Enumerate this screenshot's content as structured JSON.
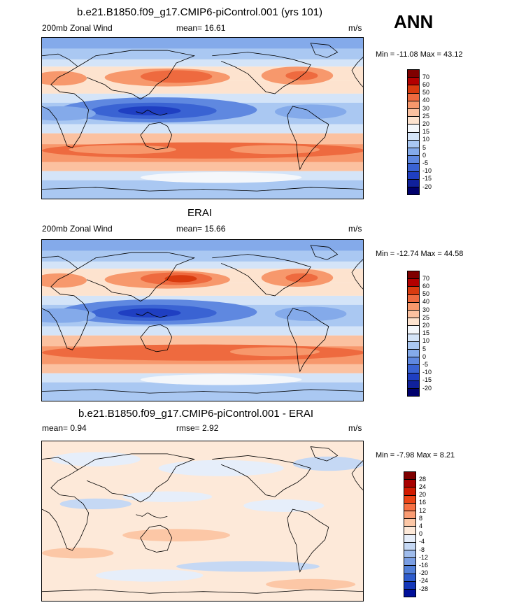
{
  "header": {
    "season": "ANN"
  },
  "panels": [
    {
      "title": "b.e21.B1850.f09_g17.CMIP6-piControl.001 (yrs 101)",
      "left_label": "200mb Zonal Wind",
      "center_label": "mean=  16.61",
      "right_label": "m/s",
      "minmax": "Min = -11.08 Max =  43.12",
      "colorbar": {
        "labels": [
          "70",
          "60",
          "50",
          "40",
          "30",
          "25",
          "20",
          "15",
          "10",
          "5",
          "0",
          "-5",
          "-10",
          "-15",
          "-20"
        ],
        "colors": [
          "#7f0000",
          "#b30000",
          "#d93b0f",
          "#ee6a3f",
          "#f7986c",
          "#fbc1a0",
          "#fde3cf",
          "#f4f7fb",
          "#d4e4f8",
          "#aac8f2",
          "#84aaea",
          "#5f88e0",
          "#3a63d3",
          "#1f3fc2",
          "#10219b",
          "#00006c"
        ]
      },
      "field": "model"
    },
    {
      "title": "ERAI",
      "left_label": "200mb Zonal Wind",
      "center_label": "mean=  15.66",
      "right_label": "m/s",
      "minmax": "Min = -12.74 Max =  44.58",
      "colorbar": {
        "labels": [
          "70",
          "60",
          "50",
          "40",
          "30",
          "25",
          "20",
          "15",
          "10",
          "5",
          "0",
          "-5",
          "-10",
          "-15",
          "-20"
        ],
        "colors": [
          "#7f0000",
          "#b30000",
          "#d93b0f",
          "#ee6a3f",
          "#f7986c",
          "#fbc1a0",
          "#fde3cf",
          "#f4f7fb",
          "#d4e4f8",
          "#aac8f2",
          "#84aaea",
          "#5f88e0",
          "#3a63d3",
          "#1f3fc2",
          "#10219b",
          "#00006c"
        ]
      },
      "field": "obs"
    },
    {
      "title": "b.e21.B1850.f09_g17.CMIP6-piControl.001 - ERAI",
      "left_label": "mean=   0.94",
      "center_label": "rmse=   2.92",
      "right_label": "m/s",
      "minmax": "Min =  -7.98 Max =   8.21",
      "colorbar": {
        "labels": [
          "28",
          "24",
          "20",
          "16",
          "12",
          "8",
          "4",
          "0",
          "-4",
          "-8",
          "-12",
          "-16",
          "-20",
          "-24",
          "-28"
        ],
        "colors": [
          "#7f0000",
          "#a80000",
          "#d11a00",
          "#ec4416",
          "#f77043",
          "#fa9c73",
          "#fcc7a6",
          "#fde9d9",
          "#e6eefa",
          "#c5d8f4",
          "#9fbcec",
          "#7a9ee3",
          "#5380d9",
          "#2e5ccd",
          "#1437b9",
          "#00109a"
        ]
      },
      "field": "diff"
    }
  ]
}
